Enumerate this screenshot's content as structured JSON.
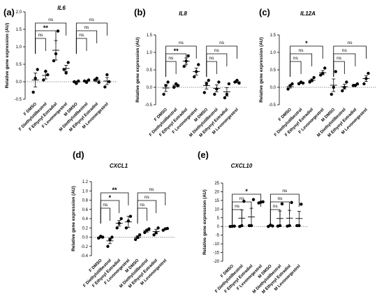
{
  "chart_data": [
    {
      "type": "scatter",
      "panel_label": "(a)",
      "title": "IL6",
      "ylabel": "Relative gene expression (AU)",
      "ylim": [
        -0.5,
        2.0
      ],
      "yticks": [
        "-0.5",
        "0.0",
        "0.5",
        "1.0",
        "1.5",
        "2.0"
      ],
      "categories": [
        "F DMSO",
        "F Diethylstilbestrol",
        "F Ethynyl Estradiol",
        "F Levonorgestrel",
        "M DMSO",
        "M Diethylstilbestrol",
        "M Ethynyl Estradiol",
        "M Levonorgestrel"
      ],
      "points": [
        [
          -0.3,
          0.1,
          0.35
        ],
        [
          0.05,
          0.3,
          0.2
        ],
        [
          0.6,
          0.8,
          1.45
        ],
        [
          0.35,
          0.25,
          0.55
        ],
        [
          0.0,
          -0.05,
          0.02
        ],
        [
          0.02,
          -0.02,
          0.05
        ],
        [
          0.05,
          0.1,
          -0.02
        ],
        [
          -0.15,
          0.2,
          0.0
        ]
      ],
      "mean": [
        0.05,
        0.18,
        0.9,
        0.38,
        -0.01,
        0.02,
        0.04,
        0.02
      ],
      "error": [
        0.2,
        0.1,
        0.28,
        0.09,
        0.03,
        0.02,
        0.04,
        0.1
      ],
      "comparisons": [
        {
          "from": 0,
          "to": 1,
          "label": "ns"
        },
        {
          "from": 0,
          "to": 2,
          "label": "**"
        },
        {
          "from": 0,
          "to": 3,
          "label": "ns"
        },
        {
          "from": 4,
          "to": 5,
          "label": "ns"
        },
        {
          "from": 4,
          "to": 6,
          "label": "ns"
        },
        {
          "from": 4,
          "to": 7,
          "label": "ns"
        }
      ]
    },
    {
      "type": "scatter",
      "panel_label": "(b)",
      "title": "IL8",
      "ylabel": "Relative gene expression (AU)",
      "ylim": [
        -0.5,
        1.5
      ],
      "yticks": [
        "-0.5",
        "0.0",
        "0.5",
        "1.0",
        "1.5"
      ],
      "categories": [
        "F DMSO",
        "F Diethylstilbestrol",
        "F Ethynyl Estradiol",
        "F Levonorgestrel",
        "M DMSO",
        "M Diethylstilbestrol",
        "M Ethynyl Estradiol",
        "M Levonorgestrel"
      ],
      "points": [
        [
          -0.2,
          0.05,
          0.15
        ],
        [
          0.0,
          0.1,
          0.05
        ],
        [
          0.6,
          0.75,
          0.9
        ],
        [
          0.3,
          0.45,
          0.65
        ],
        [
          -0.15,
          0.1,
          0.2
        ],
        [
          -0.2,
          -0.05,
          0.15
        ],
        [
          -0.3,
          -0.2,
          0.1
        ],
        [
          0.15,
          0.2,
          0.12
        ]
      ],
      "mean": [
        -0.02,
        0.06,
        0.75,
        0.45,
        0.05,
        -0.03,
        -0.13,
        0.16
      ],
      "error": [
        0.1,
        0.04,
        0.09,
        0.1,
        0.1,
        0.1,
        0.12,
        0.03
      ],
      "comparisons": [
        {
          "from": 0,
          "to": 1,
          "label": "ns"
        },
        {
          "from": 0,
          "to": 2,
          "label": "**"
        },
        {
          "from": 0,
          "to": 3,
          "label": "ns"
        },
        {
          "from": 4,
          "to": 5,
          "label": "ns"
        },
        {
          "from": 4,
          "to": 6,
          "label": "ns"
        },
        {
          "from": 4,
          "to": 7,
          "label": "ns"
        }
      ]
    },
    {
      "type": "scatter",
      "panel_label": "(c)",
      "title": "IL12A",
      "ylabel": "Relative gene expression (AU)",
      "ylim": [
        -0.5,
        1.5
      ],
      "yticks": [
        "-0.5",
        "0.0",
        "0.5",
        "1.0",
        "1.5"
      ],
      "categories": [
        "F DMSO",
        "F Diethylstilbestrol",
        "F Ethynyl Estradiol",
        "F Levonorgestrel",
        "M DMSO",
        "M Diethylstilbestrol",
        "M Ethynyl Estradiol",
        "M Levonorgestrel"
      ],
      "points": [
        [
          -0.05,
          0.05,
          0.1
        ],
        [
          0.1,
          0.15,
          0.12
        ],
        [
          0.15,
          0.2,
          0.28
        ],
        [
          0.35,
          0.4,
          0.55
        ],
        [
          -0.2,
          0.0,
          0.45
        ],
        [
          -0.1,
          0.0,
          0.15
        ],
        [
          0.05,
          0.05,
          0.1
        ],
        [
          0.1,
          0.25,
          0.4
        ]
      ],
      "mean": [
        0.02,
        0.13,
        0.2,
        0.42,
        0.06,
        0.02,
        0.07,
        0.25
      ],
      "error": [
        0.04,
        0.02,
        0.04,
        0.06,
        0.18,
        0.07,
        0.02,
        0.08
      ],
      "comparisons": [
        {
          "from": 0,
          "to": 1,
          "label": "ns"
        },
        {
          "from": 0,
          "to": 2,
          "label": "ns"
        },
        {
          "from": 0,
          "to": 3,
          "label": "*"
        },
        {
          "from": 4,
          "to": 5,
          "label": "ns"
        },
        {
          "from": 4,
          "to": 6,
          "label": "ns"
        },
        {
          "from": 4,
          "to": 7,
          "label": "ns"
        }
      ]
    },
    {
      "type": "scatter",
      "panel_label": "(d)",
      "title": "CXCL1",
      "ylabel": "Relative gene expression (AU)",
      "ylim": [
        -0.4,
        1.2
      ],
      "yticks": [
        "-0.4",
        "-0.2",
        "0.0",
        "0.2",
        "0.4",
        "0.6",
        "0.8",
        "1.0",
        "1.2"
      ],
      "categories": [
        "F DMSO",
        "F Diethylstilbestrol",
        "F Ethynyl Estradiol",
        "F Levonorgestrel",
        "M DMSO",
        "M Diethylstilbestrol",
        "M Ethynyl Estradiol",
        "M Levonorgestrel"
      ],
      "points": [
        [
          -0.02,
          0.02,
          0.0
        ],
        [
          -0.2,
          -0.05,
          0.0
        ],
        [
          0.2,
          0.3,
          0.4
        ],
        [
          0.2,
          0.35,
          0.45
        ],
        [
          -0.05,
          0.0,
          0.05
        ],
        [
          0.1,
          0.15,
          0.18
        ],
        [
          0.05,
          0.1,
          0.2
        ],
        [
          0.15,
          0.18,
          0.19
        ]
      ],
      "mean": [
        0.0,
        -0.08,
        0.3,
        0.33,
        0.0,
        0.14,
        0.12,
        0.17
      ],
      "error": [
        0.02,
        0.06,
        0.06,
        0.12,
        0.03,
        0.03,
        0.05,
        0.01
      ],
      "comparisons": [
        {
          "from": 0,
          "to": 1,
          "label": "ns"
        },
        {
          "from": 0,
          "to": 2,
          "label": "*"
        },
        {
          "from": 0,
          "to": 3,
          "label": "**"
        },
        {
          "from": 4,
          "to": 5,
          "label": "ns"
        },
        {
          "from": 4,
          "to": 6,
          "label": "ns"
        },
        {
          "from": 4,
          "to": 7,
          "label": "ns"
        }
      ]
    },
    {
      "type": "scatter",
      "panel_label": "(e)",
      "title": "CXCL10",
      "ylabel": "Relative gene expression (AU)",
      "ylim": [
        -20,
        25
      ],
      "yticks": [
        "-20",
        "-15",
        "-10",
        "-5",
        "0",
        "5",
        "10",
        "15",
        "20",
        "25"
      ],
      "categories": [
        "F DMSO",
        "F Diethylstilbestrol",
        "F Ethynyl Estradiol",
        "F Levonorgestrel",
        "M DMSO",
        "M Diethylstilbestrol",
        "M Ethynyl Estradiol",
        "M Levonorgestrel"
      ],
      "points": [
        [
          0.0,
          0.1,
          0.2
        ],
        [
          0.0,
          0.5,
          14.5
        ],
        [
          0.5,
          0.5,
          15.5
        ],
        [
          13.5,
          14.0,
          14.2
        ],
        [
          0.0,
          0.8,
          0.3
        ],
        [
          0.2,
          0.5,
          13.0
        ],
        [
          0.2,
          0.5,
          13.8
        ],
        [
          0.5,
          0.5,
          12.8
        ]
      ],
      "mean": [
        0.1,
        4.8,
        5.5,
        14.0,
        0.4,
        4.6,
        4.8,
        4.6
      ],
      "error": [
        0.1,
        4.8,
        5.0,
        0.3,
        0.3,
        4.3,
        4.5,
        4.1
      ],
      "comparisons": [
        {
          "from": 0,
          "to": 1,
          "label": "ns"
        },
        {
          "from": 0,
          "to": 2,
          "label": "ns"
        },
        {
          "from": 0,
          "to": 3,
          "label": "*"
        },
        {
          "from": 4,
          "to": 5,
          "label": "ns"
        },
        {
          "from": 4,
          "to": 6,
          "label": "ns"
        },
        {
          "from": 4,
          "to": 7,
          "label": "ns"
        }
      ]
    }
  ]
}
